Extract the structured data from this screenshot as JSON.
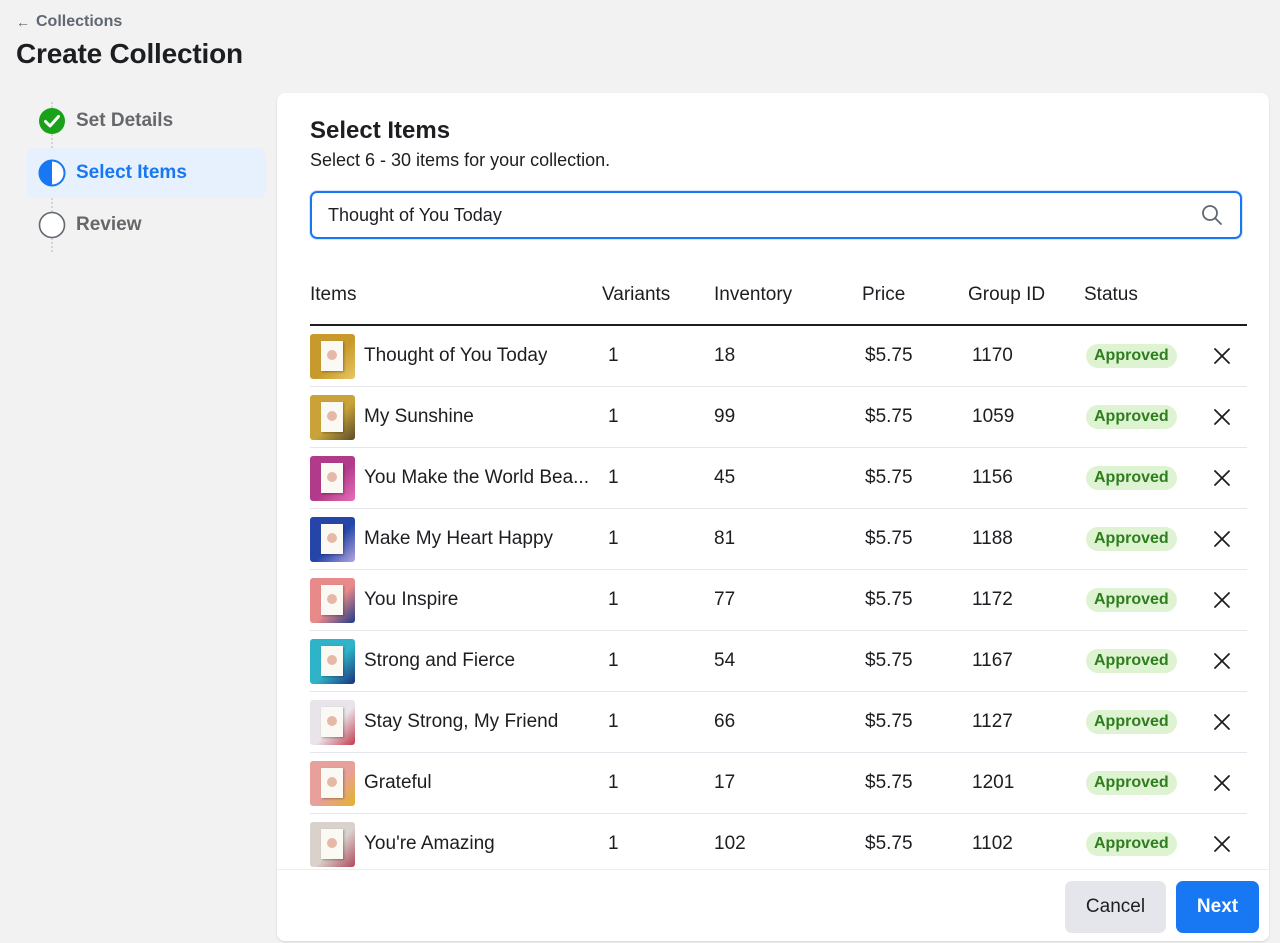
{
  "header": {
    "back_label": "Collections",
    "title": "Create Collection"
  },
  "stepper": {
    "steps": [
      {
        "label": "Set Details",
        "state": "complete"
      },
      {
        "label": "Select Items",
        "state": "active"
      },
      {
        "label": "Review",
        "state": "pending"
      }
    ]
  },
  "panel": {
    "title": "Select Items",
    "subtitle": "Select 6 - 30 items for your collection.",
    "search": {
      "value": "Thought of You Today",
      "icon": "search-icon"
    }
  },
  "table": {
    "columns": [
      "Items",
      "Variants",
      "Inventory",
      "Price",
      "Group ID",
      "Status"
    ],
    "rows": [
      {
        "name": "Thought of You Today",
        "variants": "1",
        "inventory": "18",
        "price": "$5.75",
        "group_id": "1170",
        "status": "Approved",
        "thumb_bg": "#c89a2b",
        "thumb_accent": "#e8c766"
      },
      {
        "name": "My Sunshine",
        "variants": "1",
        "inventory": "99",
        "price": "$5.75",
        "group_id": "1059",
        "status": "Approved",
        "thumb_bg": "#c9a33a",
        "thumb_accent": "#5a4a2a"
      },
      {
        "name": "You Make the World Bea...",
        "variants": "1",
        "inventory": "45",
        "price": "$5.75",
        "group_id": "1156",
        "status": "Approved",
        "thumb_bg": "#b23a8a",
        "thumb_accent": "#e86fb8"
      },
      {
        "name": "Make My Heart Happy",
        "variants": "1",
        "inventory": "81",
        "price": "$5.75",
        "group_id": "1188",
        "status": "Approved",
        "thumb_bg": "#2546a8",
        "thumb_accent": "#b6a6e0"
      },
      {
        "name": "You Inspire",
        "variants": "1",
        "inventory": "77",
        "price": "$5.75",
        "group_id": "1172",
        "status": "Approved",
        "thumb_bg": "#e98a8a",
        "thumb_accent": "#1e3a8a"
      },
      {
        "name": "Strong and Fierce",
        "variants": "1",
        "inventory": "54",
        "price": "$5.75",
        "group_id": "1167",
        "status": "Approved",
        "thumb_bg": "#2fb3c9",
        "thumb_accent": "#1c2f7a"
      },
      {
        "name": "Stay Strong, My Friend",
        "variants": "1",
        "inventory": "66",
        "price": "$5.75",
        "group_id": "1127",
        "status": "Approved",
        "thumb_bg": "#e9e4ea",
        "thumb_accent": "#c23b4b"
      },
      {
        "name": "Grateful",
        "variants": "1",
        "inventory": "17",
        "price": "$5.75",
        "group_id": "1201",
        "status": "Approved",
        "thumb_bg": "#e7a09a",
        "thumb_accent": "#e3b32a"
      },
      {
        "name": "You're Amazing",
        "variants": "1",
        "inventory": "102",
        "price": "$5.75",
        "group_id": "1102",
        "status": "Approved",
        "thumb_bg": "#d9d2cc",
        "thumb_accent": "#b04a5a"
      }
    ]
  },
  "footer": {
    "cancel_label": "Cancel",
    "next_label": "Next"
  },
  "colors": {
    "accent": "#1877f2",
    "success": "#1aa11a",
    "badge_bg": "#def3d2",
    "badge_text": "#2e7d1e"
  }
}
